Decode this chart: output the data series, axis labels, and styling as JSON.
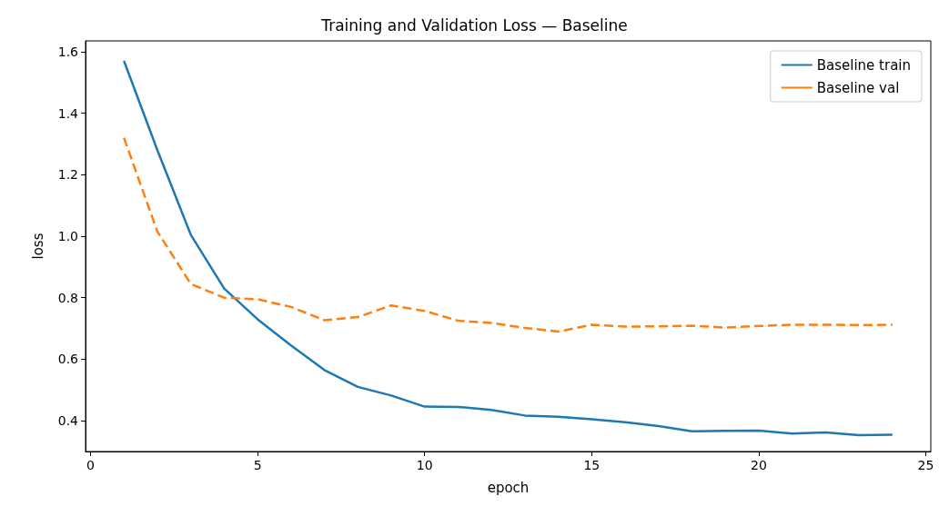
{
  "chart_data": {
    "type": "line",
    "title": "Training and Validation Loss — Baseline",
    "xlabel": "epoch",
    "ylabel": "loss",
    "x": [
      1,
      2,
      3,
      4,
      5,
      6,
      7,
      8,
      9,
      10,
      11,
      12,
      13,
      14,
      15,
      16,
      17,
      18,
      19,
      20,
      21,
      22,
      23,
      24
    ],
    "series": [
      {
        "name": "Baseline train",
        "color": "#1f77b4",
        "line_style": "solid",
        "values": [
          1.57,
          1.28,
          1.005,
          0.83,
          0.73,
          0.645,
          0.565,
          0.51,
          0.482,
          0.446,
          0.445,
          0.435,
          0.417,
          0.413,
          0.405,
          0.395,
          0.383,
          0.366,
          0.367,
          0.368,
          0.358,
          0.362,
          0.353,
          0.355
        ]
      },
      {
        "name": "Baseline val",
        "color": "#ff7f0e",
        "line_style": "dashed",
        "values": [
          1.32,
          1.015,
          0.845,
          0.8,
          0.795,
          0.77,
          0.727,
          0.737,
          0.775,
          0.757,
          0.725,
          0.718,
          0.702,
          0.69,
          0.712,
          0.706,
          0.707,
          0.709,
          0.703,
          0.708,
          0.712,
          0.712,
          0.711,
          0.712
        ]
      }
    ],
    "xlim": [
      -0.15,
      25.15
    ],
    "xticks": [
      0,
      5,
      10,
      15,
      20,
      25
    ],
    "ylim": [
      0.3,
      1.635
    ],
    "yticks": [
      0.4,
      0.6,
      0.8,
      {
        "value": 1,
        "label": "1.0"
      },
      1.2,
      1.4,
      1.6
    ],
    "grid": false,
    "legend": "top right",
    "marker": "none"
  }
}
